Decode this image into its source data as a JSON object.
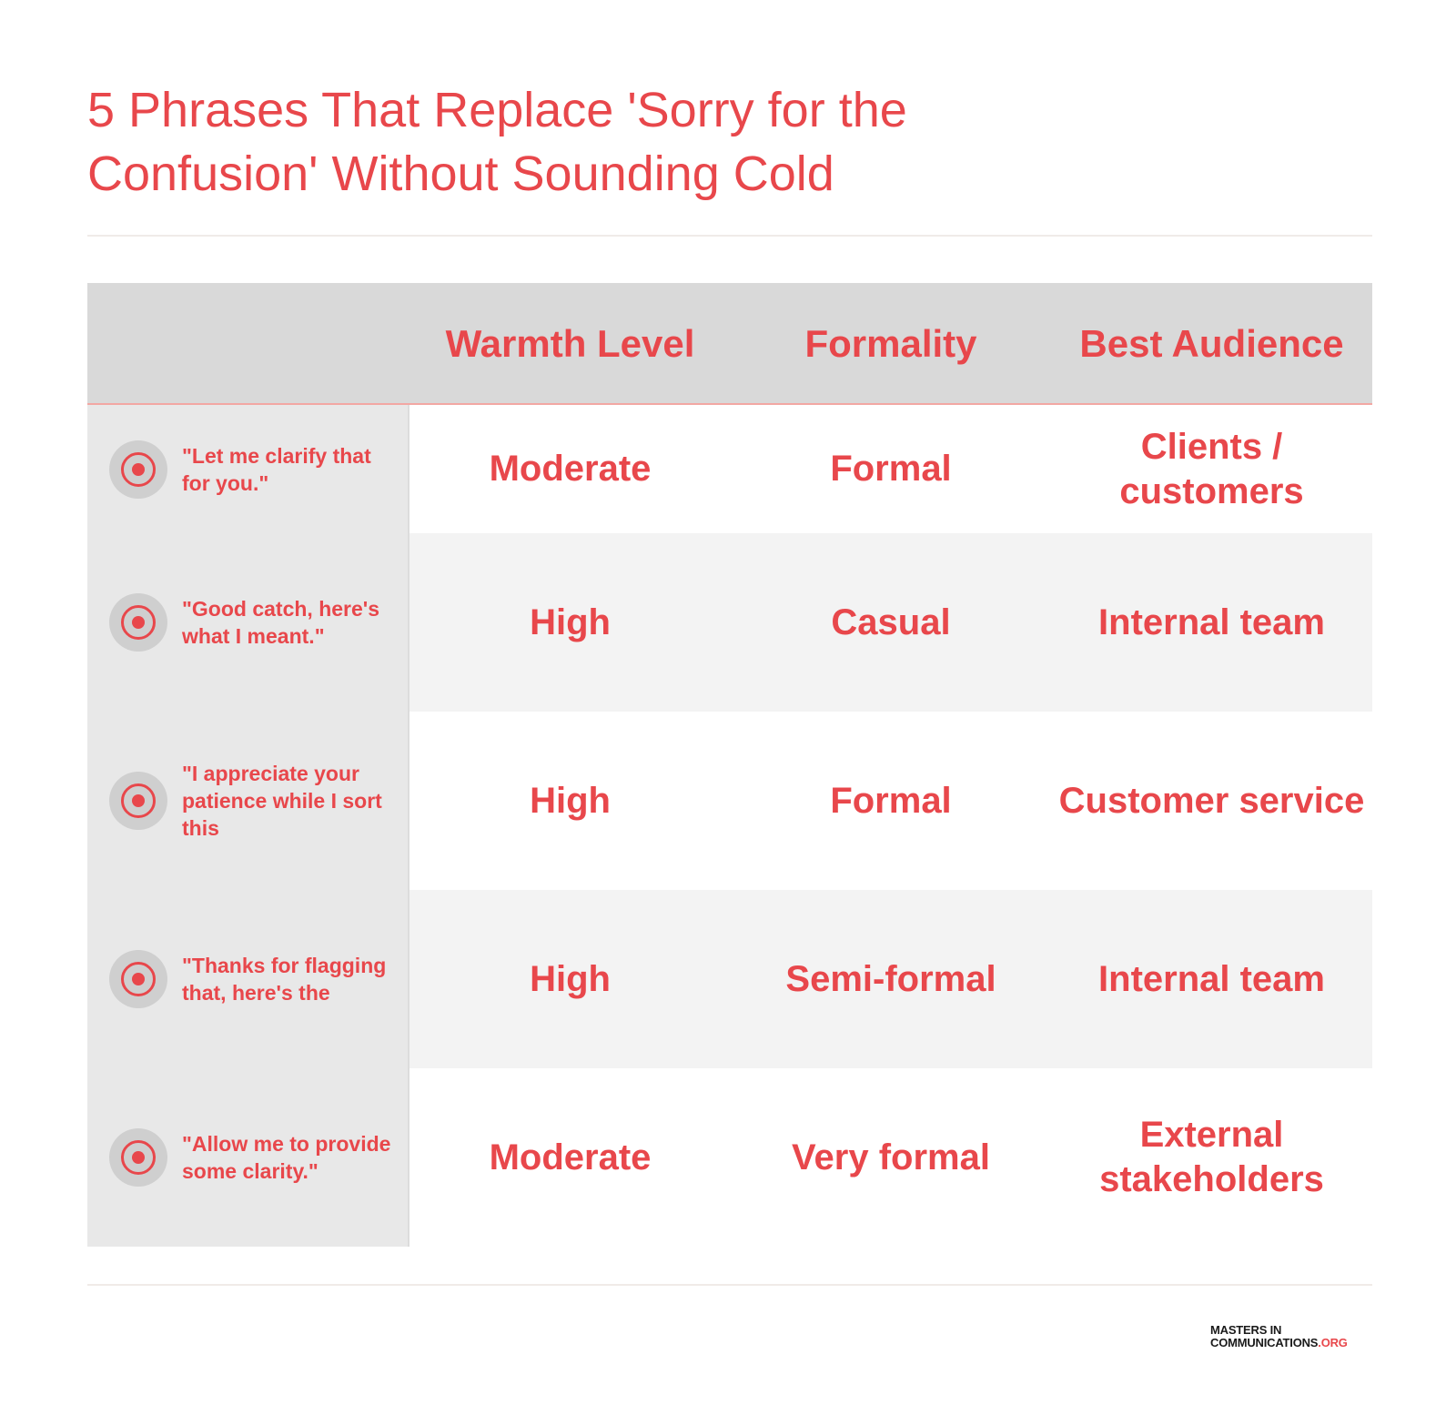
{
  "title": "5 Phrases That Replace 'Sorry for the Confusion' Without Sounding Cold",
  "table": {
    "headers": [
      "",
      "Warmth Level",
      "Formality",
      "Best Audience"
    ],
    "rows": [
      {
        "phrase": "\"Let me clarify that for you.\"",
        "warmth": "Moderate",
        "formality": "Formal",
        "audience": "Clients / customers"
      },
      {
        "phrase": "\"Good catch, here's what I meant.\"",
        "warmth": "High",
        "formality": "Casual",
        "audience": "Internal team"
      },
      {
        "phrase": "\"I appreciate your patience while I sort this",
        "warmth": "High",
        "formality": "Formal",
        "audience": "Customer service"
      },
      {
        "phrase": "\"Thanks for flagging that, here's the",
        "warmth": "High",
        "formality": "Semi-formal",
        "audience": "Internal team"
      },
      {
        "phrase": "\"Allow me to provide some clarity.\"",
        "warmth": "Moderate",
        "formality": "Very formal",
        "audience": "External stakeholders"
      }
    ]
  },
  "icons": {
    "row_icon": "target-icon"
  },
  "logo": {
    "line1": "MASTERS IN",
    "line2": "COMMUNICATIONS",
    "suffix": ".ORG"
  },
  "colors": {
    "accent": "#e8474b",
    "header_bg": "#d9d9d9",
    "left_col_bg": "#e8e8e8",
    "alt_row_bg": "#f3f3f3"
  }
}
